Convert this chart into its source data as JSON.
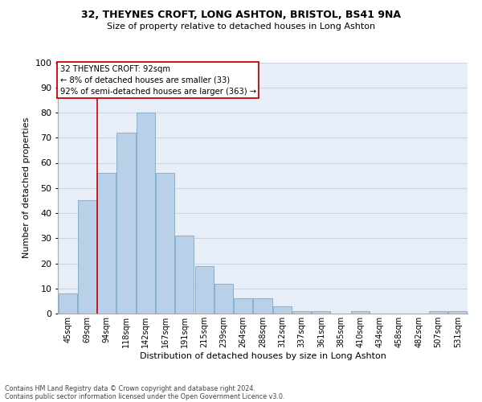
{
  "title1": "32, THEYNES CROFT, LONG ASHTON, BRISTOL, BS41 9NA",
  "title2": "Size of property relative to detached houses in Long Ashton",
  "xlabel": "Distribution of detached houses by size in Long Ashton",
  "ylabel": "Number of detached properties",
  "footer1": "Contains HM Land Registry data © Crown copyright and database right 2024.",
  "footer2": "Contains public sector information licensed under the Open Government Licence v3.0.",
  "bar_labels": [
    "45sqm",
    "69sqm",
    "94sqm",
    "118sqm",
    "142sqm",
    "167sqm",
    "191sqm",
    "215sqm",
    "239sqm",
    "264sqm",
    "288sqm",
    "312sqm",
    "337sqm",
    "361sqm",
    "385sqm",
    "410sqm",
    "434sqm",
    "458sqm",
    "482sqm",
    "507sqm",
    "531sqm"
  ],
  "bar_values": [
    8,
    45,
    56,
    72,
    80,
    56,
    31,
    19,
    12,
    6,
    6,
    3,
    1,
    1,
    0,
    1,
    0,
    0,
    0,
    1,
    1
  ],
  "bar_color": "#b8d0e8",
  "bar_edge_color": "#7aaac8",
  "grid_color": "#c8d4e4",
  "bg_color": "#e8eef8",
  "annotation_title": "32 THEYNES CROFT: 92sqm",
  "annotation_line1": "← 8% of detached houses are smaller (33)",
  "annotation_line2": "92% of semi-detached houses are larger (363) →",
  "annotation_box_color": "#ffffff",
  "annotation_border_color": "#cc0000",
  "vline_color": "#cc0000",
  "ylim": [
    0,
    100
  ],
  "yticks": [
    0,
    10,
    20,
    30,
    40,
    50,
    60,
    70,
    80,
    90,
    100
  ],
  "vline_index": 1.5
}
